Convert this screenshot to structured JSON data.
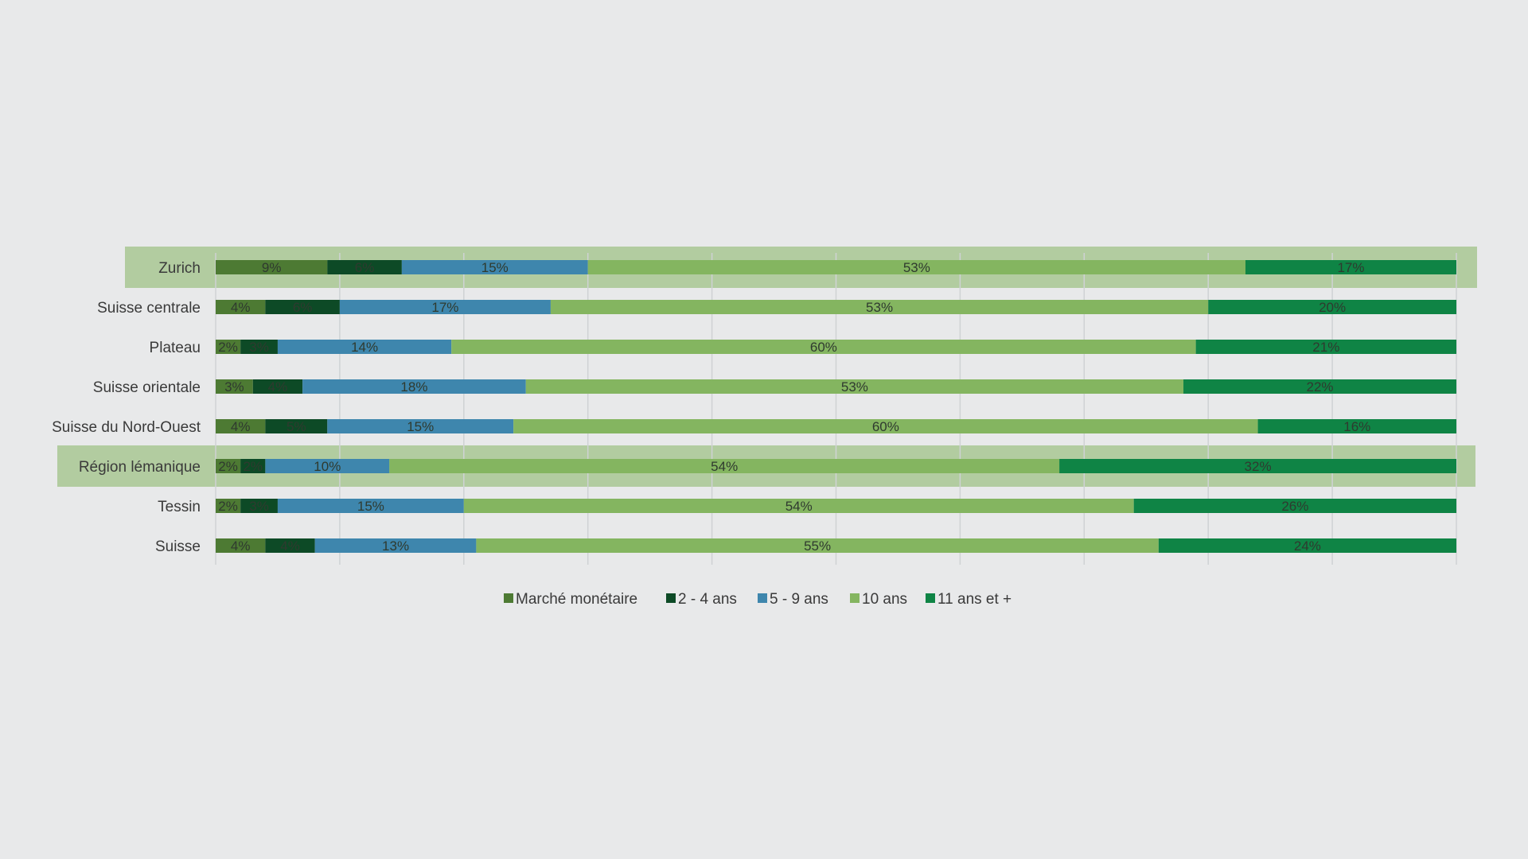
{
  "chart_data": {
    "type": "bar",
    "orientation": "horizontal",
    "stacked": true,
    "normalized": true,
    "title": "",
    "xlabel": "",
    "ylabel": "",
    "xlim": [
      0,
      1
    ],
    "grid": true,
    "legend_position": "bottom",
    "categories": [
      "Zurich",
      "Suisse centrale",
      "Plateau",
      "Suisse orientale",
      "Suisse du Nord-Ouest",
      "Région lémanique",
      "Tessin",
      "Suisse"
    ],
    "highlighted_categories": [
      "Zurich",
      "Région lémanique"
    ],
    "highlight_color": "#b2cca0",
    "series": [
      {
        "name": "Marché monétaire",
        "color": "#4d7a33",
        "values": [
          9,
          4,
          2,
          3,
          4,
          2,
          2,
          4
        ],
        "labels": [
          "9%",
          "4%",
          "2%",
          "3%",
          "4%",
          "2%",
          "2%",
          "4%"
        ]
      },
      {
        "name": "2 - 4 ans",
        "color": "#0d4a26",
        "values": [
          6,
          6,
          3,
          4,
          5,
          2,
          3,
          4
        ],
        "labels": [
          "6%",
          "6%",
          "3%",
          "4%",
          "5%",
          "2%",
          "3%",
          "4%"
        ]
      },
      {
        "name": "5 - 9 ans",
        "color": "#3e86ad",
        "values": [
          15,
          17,
          14,
          18,
          15,
          10,
          15,
          13
        ],
        "labels": [
          "15%",
          "17%",
          "14%",
          "18%",
          "15%",
          "10%",
          "15%",
          "13%"
        ]
      },
      {
        "name": "10 ans",
        "color": "#84b560",
        "values": [
          53,
          53,
          60,
          53,
          60,
          54,
          54,
          55
        ],
        "labels": [
          "53%",
          "53%",
          "60%",
          "53%",
          "60%",
          "54%",
          "54%",
          "55%"
        ]
      },
      {
        "name": "11 ans et +",
        "color": "#0f8445",
        "values": [
          17,
          20,
          21,
          22,
          16,
          32,
          26,
          24
        ],
        "labels": [
          "17%",
          "20%",
          "21%",
          "22%",
          "16%",
          "32%",
          "26%",
          "24%"
        ]
      }
    ]
  }
}
